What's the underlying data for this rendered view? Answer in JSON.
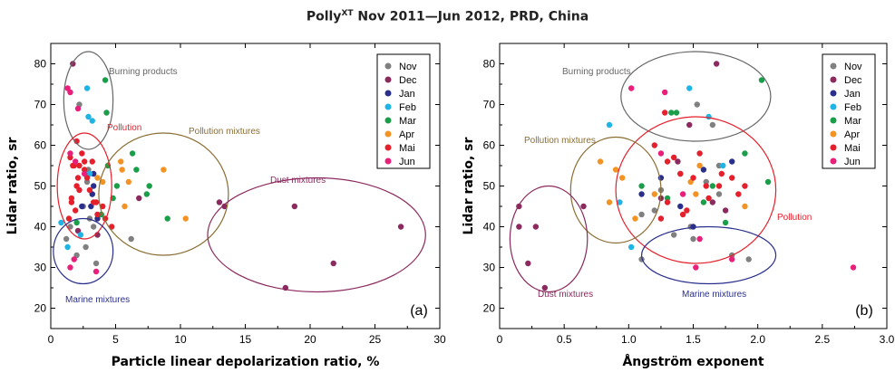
{
  "figure": {
    "title_main": "Polly",
    "title_sup": "XT",
    "title_rest": " Nov 2011—Jun 2012, PRD, China"
  },
  "colors": {
    "Nov": "#808080",
    "Dec": "#8b2a5e",
    "Jan": "#2a2f8c",
    "Feb": "#1fb4e6",
    "Mar": "#1a9e4a",
    "Apr": "#f39323",
    "Mai": "#e51f2b",
    "Jun": "#ea1e7b"
  },
  "chart_data": [
    {
      "type": "scatter",
      "panel": "(a)",
      "xlabel": "Particle linear depolarization ratio, %",
      "ylabel": "Lidar ratio, sr",
      "xlim": [
        0,
        30
      ],
      "ylim": [
        15,
        85
      ],
      "xticks": [
        0,
        5,
        10,
        15,
        20,
        25,
        30
      ],
      "yticks": [
        20,
        30,
        40,
        50,
        60,
        70,
        80
      ],
      "grid": false,
      "legend": "top-right",
      "series": [
        {
          "name": "Nov",
          "points": [
            [
              1.2,
              37
            ],
            [
              1.5,
              40
            ],
            [
              2.2,
              70
            ],
            [
              2.5,
              45
            ],
            [
              2.7,
              35
            ],
            [
              2.9,
              54
            ],
            [
              3.0,
              42
            ],
            [
              3.3,
              40
            ],
            [
              3.5,
              31
            ],
            [
              6.2,
              37
            ],
            [
              2.0,
              33
            ],
            [
              3.2,
              48
            ],
            [
              2.8,
              51
            ]
          ]
        },
        {
          "name": "Dec",
          "points": [
            [
              1.7,
              80
            ],
            [
              13.0,
              46
            ],
            [
              13.4,
              45
            ],
            [
              18.1,
              25
            ],
            [
              18.8,
              45
            ],
            [
              21.8,
              31
            ],
            [
              27.0,
              40
            ],
            [
              6.8,
              47
            ],
            [
              2.1,
              39
            ],
            [
              3.6,
              38
            ]
          ]
        },
        {
          "name": "Jan",
          "points": [
            [
              2.4,
              45
            ],
            [
              3.2,
              48
            ],
            [
              3.3,
              53
            ],
            [
              3.6,
              42
            ],
            [
              3.3,
              50
            ],
            [
              3.1,
              45
            ]
          ]
        },
        {
          "name": "Feb",
          "points": [
            [
              1.3,
              35
            ],
            [
              0.8,
              41
            ],
            [
              2.8,
              74
            ],
            [
              2.9,
              67
            ],
            [
              3.2,
              66
            ],
            [
              2.3,
              38
            ],
            [
              3.0,
              53
            ]
          ]
        },
        {
          "name": "Mar",
          "points": [
            [
              2.0,
              41
            ],
            [
              4.2,
              76
            ],
            [
              4.3,
              68
            ],
            [
              4.4,
              55
            ],
            [
              5.1,
              50
            ],
            [
              6.3,
              58
            ],
            [
              6.6,
              54
            ],
            [
              7.6,
              50
            ],
            [
              7.4,
              48
            ],
            [
              9.0,
              42
            ],
            [
              4.8,
              47
            ],
            [
              3.9,
              43
            ]
          ]
        },
        {
          "name": "Apr",
          "points": [
            [
              5.5,
              54
            ],
            [
              5.4,
              56
            ],
            [
              6.0,
              51
            ],
            [
              5.7,
              45
            ],
            [
              8.7,
              54
            ],
            [
              10.4,
              42
            ],
            [
              4.0,
              51
            ],
            [
              3.6,
              52
            ]
          ]
        },
        {
          "name": "Mai",
          "points": [
            [
              1.5,
              57
            ],
            [
              1.8,
              55
            ],
            [
              2.0,
              61
            ],
            [
              2.2,
              55
            ],
            [
              2.4,
              58
            ],
            [
              2.6,
              56
            ],
            [
              2.8,
              52
            ],
            [
              1.6,
              47
            ],
            [
              1.9,
              44
            ],
            [
              2.1,
              52
            ],
            [
              3.0,
              49
            ],
            [
              3.3,
              46
            ],
            [
              4.0,
              45
            ],
            [
              3.2,
              56
            ],
            [
              2.0,
              50
            ],
            [
              1.4,
              42
            ],
            [
              1.7,
              55
            ],
            [
              2.2,
              49
            ],
            [
              3.5,
              46
            ],
            [
              4.7,
              40
            ],
            [
              2.6,
              54
            ],
            [
              1.6,
              46
            ],
            [
              3.6,
              43
            ],
            [
              4.2,
              42
            ]
          ]
        },
        {
          "name": "Jun",
          "points": [
            [
              1.3,
              74
            ],
            [
              1.5,
              73
            ],
            [
              1.5,
              58
            ],
            [
              1.9,
              56
            ],
            [
              2.1,
              69
            ],
            [
              2.6,
              53
            ],
            [
              1.5,
              30
            ],
            [
              1.8,
              32
            ],
            [
              3.5,
              29
            ]
          ]
        }
      ],
      "regions": [
        {
          "label": "Burning products",
          "color": "#666666",
          "cx": 2.9,
          "cy": 71,
          "rx": 1.9,
          "ry": 12
        },
        {
          "label": "Pollution",
          "color": "#e51f2b",
          "cx": 2.6,
          "cy": 50,
          "rx": 2.1,
          "ry": 13
        },
        {
          "label": "Pollution mixtures",
          "color": "#8a6d32",
          "cx": 8.7,
          "cy": 48,
          "rx": 5.0,
          "ry": 15
        },
        {
          "label": "Dust mixtures",
          "color": "#8b2a5e",
          "cx": 20.5,
          "cy": 38,
          "rx": 8.4,
          "ry": 14
        },
        {
          "label": "Marine mixtures",
          "color": "#2a2f8c",
          "cx": 2.5,
          "cy": 34,
          "rx": 2.3,
          "ry": 8
        }
      ]
    },
    {
      "type": "scatter",
      "panel": "(b)",
      "xlabel": "Ångström exponent",
      "ylabel": "Lidar ratio, sr",
      "xlim": [
        0,
        3.0
      ],
      "ylim": [
        15,
        85
      ],
      "xticks": [
        "0",
        "0.5",
        "1.0",
        "1.5",
        "2.0",
        "2.5",
        "3.0"
      ],
      "yticks": [
        20,
        30,
        40,
        50,
        60,
        70,
        80
      ],
      "grid": false,
      "legend": "top-right",
      "series": [
        {
          "name": "Nov",
          "points": [
            [
              1.53,
              70
            ],
            [
              1.65,
              65
            ],
            [
              1.1,
              32
            ],
            [
              1.2,
              44
            ],
            [
              1.35,
              38
            ],
            [
              1.5,
              37
            ],
            [
              1.6,
              51
            ],
            [
              1.7,
              48
            ],
            [
              1.8,
              33
            ],
            [
              1.93,
              32
            ],
            [
              1.25,
              49
            ],
            [
              1.48,
              40
            ],
            [
              1.7,
              55
            ],
            [
              1.1,
              43
            ],
            [
              1.4,
              53
            ]
          ]
        },
        {
          "name": "Dec",
          "points": [
            [
              1.68,
              80
            ],
            [
              1.47,
              65
            ],
            [
              0.15,
              45
            ],
            [
              0.15,
              40
            ],
            [
              0.22,
              31
            ],
            [
              0.28,
              40
            ],
            [
              0.35,
              25
            ],
            [
              0.65,
              45
            ],
            [
              1.25,
              47
            ],
            [
              1.65,
              46
            ],
            [
              1.75,
              44
            ],
            [
              1.38,
              56
            ]
          ]
        },
        {
          "name": "Jan",
          "points": [
            [
              1.1,
              48
            ],
            [
              1.4,
              45
            ],
            [
              1.58,
              54
            ],
            [
              1.8,
              56
            ],
            [
              1.5,
              40
            ],
            [
              1.25,
              52
            ]
          ]
        },
        {
          "name": "Feb",
          "points": [
            [
              0.85,
              65
            ],
            [
              1.47,
              74
            ],
            [
              1.62,
              67
            ],
            [
              0.93,
              46
            ],
            [
              1.02,
              35
            ],
            [
              1.73,
              55
            ]
          ]
        },
        {
          "name": "Mar",
          "points": [
            [
              2.03,
              76
            ],
            [
              1.37,
              68
            ],
            [
              1.33,
              68
            ],
            [
              1.1,
              50
            ],
            [
              1.65,
              50
            ],
            [
              1.75,
              41
            ],
            [
              1.9,
              58
            ],
            [
              2.08,
              51
            ],
            [
              1.58,
              46
            ],
            [
              1.3,
              47
            ]
          ]
        },
        {
          "name": "Apr",
          "points": [
            [
              0.78,
              56
            ],
            [
              0.9,
              54
            ],
            [
              0.95,
              52
            ],
            [
              0.85,
              46
            ],
            [
              1.05,
              42
            ],
            [
              1.2,
              48
            ],
            [
              1.48,
              51
            ],
            [
              1.55,
              55
            ],
            [
              1.9,
              45
            ],
            [
              1.52,
              48
            ]
          ]
        },
        {
          "name": "Mai",
          "points": [
            [
              1.28,
              68
            ],
            [
              1.2,
              60
            ],
            [
              1.3,
              56
            ],
            [
              1.35,
              57
            ],
            [
              1.4,
              53
            ],
            [
              1.5,
              52
            ],
            [
              1.6,
              50
            ],
            [
              1.7,
              50
            ],
            [
              1.8,
              52
            ],
            [
              1.85,
              48
            ],
            [
              1.25,
              42
            ],
            [
              1.45,
              44
            ],
            [
              1.72,
              53
            ],
            [
              1.62,
              47
            ],
            [
              1.42,
              43
            ],
            [
              1.9,
              50
            ],
            [
              1.3,
              46
            ],
            [
              1.55,
              58
            ]
          ]
        },
        {
          "name": "Jun",
          "points": [
            [
              1.02,
              74
            ],
            [
              1.28,
              73
            ],
            [
              1.55,
              37
            ],
            [
              1.52,
              30
            ],
            [
              1.8,
              32
            ],
            [
              2.74,
              30
            ],
            [
              1.25,
              58
            ],
            [
              1.42,
              48
            ]
          ]
        }
      ],
      "regions": [
        {
          "label": "Burning products",
          "color": "#666666",
          "cx": 1.52,
          "cy": 72,
          "rx": 0.58,
          "ry": 11
        },
        {
          "label": "Pollution",
          "color": "#e51f2b",
          "cx": 1.52,
          "cy": 49,
          "rx": 0.62,
          "ry": 18
        },
        {
          "label": "Pollution mixtures",
          "color": "#8a6d32",
          "cx": 0.9,
          "cy": 49,
          "rx": 0.35,
          "ry": 13
        },
        {
          "label": "Dust mixtures",
          "color": "#8b2a5e",
          "cx": 0.38,
          "cy": 37,
          "rx": 0.3,
          "ry": 13
        },
        {
          "label": "Marine mixtures",
          "color": "#2a2f8c",
          "cx": 1.62,
          "cy": 33,
          "rx": 0.52,
          "ry": 7
        }
      ]
    }
  ]
}
